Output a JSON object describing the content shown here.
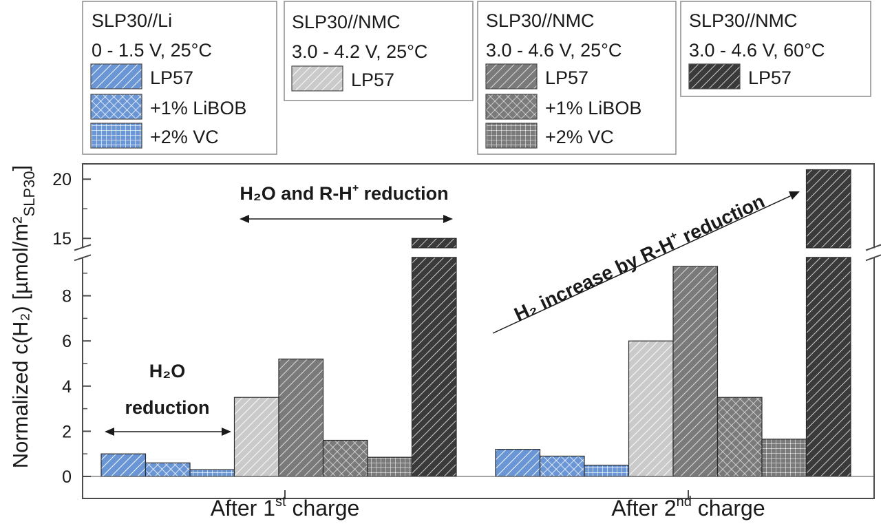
{
  "chart_data": {
    "type": "bar",
    "ylabel": "Normalized c(H₂) [µmol/m²",
    "ylabel_subscript": "SLP30",
    "ylabel_close": "]",
    "yticks_lower": [
      0,
      2,
      4,
      6,
      8
    ],
    "yticks_upper": [
      15,
      20
    ],
    "axis_break": [
      9.7,
      14.2
    ],
    "categories": [
      {
        "label": "After 1",
        "sup": "st",
        "label_end": " charge"
      },
      {
        "label": "After 2",
        "sup": "nd",
        "label_end": " charge"
      }
    ],
    "legend_groups": [
      {
        "title": "SLP30//Li",
        "subtitle": "0 - 1.5 V, 25°C",
        "entries": [
          {
            "label": "LP57",
            "color": "#6a96d6",
            "pattern": "diagonal"
          },
          {
            "label": "+1% LiBOB",
            "color": "#6a96d6",
            "pattern": "crosshatch"
          },
          {
            "label": "+2% VC",
            "color": "#6a96d6",
            "pattern": "grid"
          }
        ]
      },
      {
        "title": "SLP30//NMC",
        "subtitle": "3.0 - 4.2 V, 25°C",
        "entries": [
          {
            "label": "LP57",
            "color": "#cacaca",
            "pattern": "diagonal"
          }
        ]
      },
      {
        "title": "SLP30//NMC",
        "subtitle": "3.0 - 4.6 V, 25°C",
        "entries": [
          {
            "label": "LP57",
            "color": "#7a7a7a",
            "pattern": "diagonal"
          },
          {
            "label": "+1% LiBOB",
            "color": "#7a7a7a",
            "pattern": "crosshatch"
          },
          {
            "label": "+2% VC",
            "color": "#7a7a7a",
            "pattern": "grid"
          }
        ]
      },
      {
        "title": "SLP30//NMC",
        "subtitle": "3.0 - 4.6 V, 60°C",
        "entries": [
          {
            "label": "LP57",
            "color": "#3a3a3a",
            "pattern": "diagonal"
          }
        ]
      }
    ],
    "series": [
      {
        "values": [
          1.0,
          1.2
        ],
        "color": "#6a96d6",
        "pattern": "diagonal"
      },
      {
        "values": [
          0.6,
          0.9
        ],
        "color": "#6a96d6",
        "pattern": "crosshatch"
      },
      {
        "values": [
          0.3,
          0.5
        ],
        "color": "#6a96d6",
        "pattern": "grid"
      },
      {
        "values": [
          3.5,
          6.0
        ],
        "color": "#cacaca",
        "pattern": "diagonal"
      },
      {
        "values": [
          5.2,
          9.3
        ],
        "color": "#7a7a7a",
        "pattern": "diagonal"
      },
      {
        "values": [
          1.6,
          3.5
        ],
        "color": "#7a7a7a",
        "pattern": "crosshatch"
      },
      {
        "values": [
          0.85,
          1.65
        ],
        "color": "#7a7a7a",
        "pattern": "grid"
      },
      {
        "values": [
          15.0,
          20.8
        ],
        "color": "#3a3a3a",
        "pattern": "diagonal"
      }
    ],
    "annotations": {
      "h2o_line1": "H₂O",
      "h2o_line2": "reduction",
      "h2o_rh_pre": "H₂O and R-H",
      "h2o_rh_sup": "+",
      "h2o_rh_post": " reduction",
      "h2_increase_pre": "H₂ increase by R-H",
      "h2_increase_sup": "+",
      "h2_increase_post": " reduction"
    }
  }
}
